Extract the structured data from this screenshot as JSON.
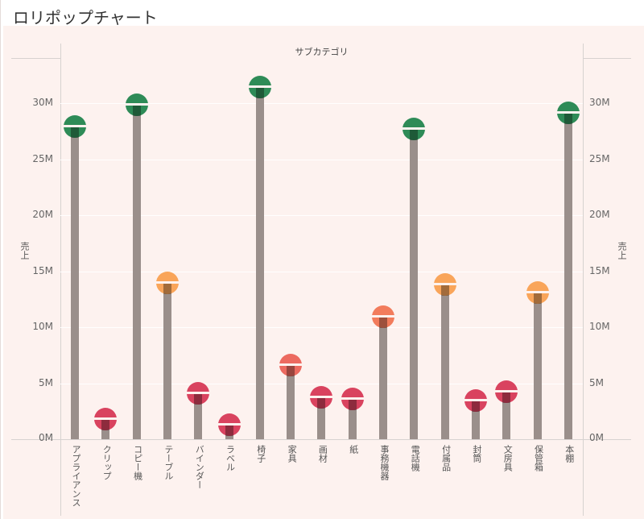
{
  "title": "ロリポップチャート",
  "header": {
    "column_title": "サブカテゴリ"
  },
  "axes": {
    "y_label_left": "売上",
    "y_label_right": "売上",
    "ticks": [
      "0M",
      "5M",
      "10M",
      "15M",
      "20M",
      "25M",
      "30M"
    ]
  },
  "colors": {
    "green": "#2e8b57",
    "orange_light": "#f9a55a",
    "orange": "#f27c5c",
    "salmon": "#ec6a60",
    "red": "#d9435f",
    "stem": "#9a8f8b",
    "background": "#fdf2ef"
  },
  "chart_data": {
    "type": "lollipop",
    "title": "ロリポップチャート",
    "xlabel": "サブカテゴリ",
    "ylabel": "売上",
    "ylim": [
      0,
      32
    ],
    "y_unit": "M",
    "grid": true,
    "categories": [
      "アプライアンス",
      "クリップ",
      "コピー機",
      "テーブル",
      "バインダー",
      "ラベル",
      "椅子",
      "家具",
      "画材",
      "紙",
      "事務機器",
      "電話機",
      "付属品",
      "封筒",
      "文房具",
      "保管箱",
      "本棚"
    ],
    "values": [
      28.0,
      1.9,
      29.9,
      14.0,
      4.2,
      1.4,
      31.5,
      6.7,
      3.8,
      3.7,
      11.0,
      27.8,
      13.9,
      3.5,
      4.3,
      13.2,
      29.2
    ],
    "color_groups": [
      "green",
      "red",
      "green",
      "orange_light",
      "red",
      "red",
      "green",
      "salmon",
      "red",
      "red",
      "orange",
      "green",
      "orange_light",
      "red",
      "red",
      "orange_light",
      "green"
    ]
  }
}
